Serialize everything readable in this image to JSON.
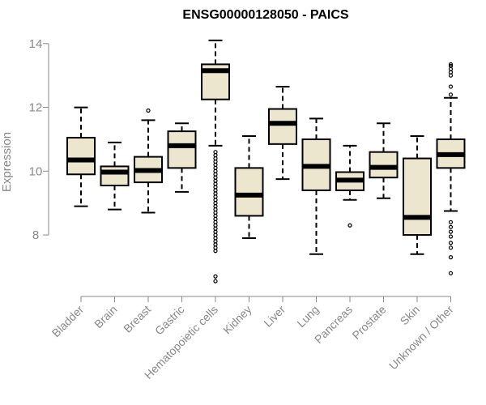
{
  "chart_data": {
    "type": "box",
    "title": "ENSG00000128050 - PAICS",
    "ylabel": "Expression",
    "ylim": [
      6.3,
      14.3
    ],
    "yticks": [
      8,
      10,
      12,
      14
    ],
    "categories": [
      "Bladder",
      "Brain",
      "Breast",
      "Gastric",
      "Hematopoietic cells",
      "Kidney",
      "Liver",
      "Lung",
      "Pancreas",
      "Prostate",
      "Skin",
      "Unknown / Other"
    ],
    "boxes": [
      {
        "whisker_low": 8.9,
        "q1": 9.9,
        "median": 10.35,
        "q3": 11.05,
        "whisker_high": 12.0,
        "outliers": []
      },
      {
        "whisker_low": 8.8,
        "q1": 9.55,
        "median": 9.97,
        "q3": 10.15,
        "whisker_high": 10.9,
        "outliers": []
      },
      {
        "whisker_low": 8.7,
        "q1": 9.65,
        "median": 10.02,
        "q3": 10.45,
        "whisker_high": 11.6,
        "outliers": [
          11.9
        ]
      },
      {
        "whisker_low": 9.35,
        "q1": 10.1,
        "median": 10.8,
        "q3": 11.25,
        "whisker_high": 11.5,
        "outliers": []
      },
      {
        "whisker_low": 10.8,
        "q1": 12.25,
        "median": 13.15,
        "q3": 13.35,
        "whisker_high": 14.1,
        "outliers": [
          10.6,
          10.5,
          10.4,
          10.3,
          10.2,
          10.1,
          10.0,
          9.9,
          9.8,
          9.7,
          9.6,
          9.5,
          9.4,
          9.3,
          9.2,
          9.1,
          9.0,
          8.9,
          8.8,
          8.7,
          8.6,
          8.5,
          8.4,
          8.3,
          8.2,
          8.1,
          8.0,
          7.9,
          7.8,
          7.7,
          7.6,
          7.5,
          6.7,
          6.55
        ]
      },
      {
        "whisker_low": 7.9,
        "q1": 8.6,
        "median": 9.25,
        "q3": 10.1,
        "whisker_high": 11.1,
        "outliers": []
      },
      {
        "whisker_low": 9.75,
        "q1": 10.85,
        "median": 11.5,
        "q3": 11.95,
        "whisker_high": 12.65,
        "outliers": []
      },
      {
        "whisker_low": 7.4,
        "q1": 9.4,
        "median": 10.15,
        "q3": 11.0,
        "whisker_high": 11.65,
        "outliers": []
      },
      {
        "whisker_low": 9.1,
        "q1": 9.4,
        "median": 9.72,
        "q3": 9.97,
        "whisker_high": 10.8,
        "outliers": [
          8.3
        ]
      },
      {
        "whisker_low": 9.15,
        "q1": 9.8,
        "median": 10.12,
        "q3": 10.6,
        "whisker_high": 11.5,
        "outliers": []
      },
      {
        "whisker_low": 7.4,
        "q1": 8.0,
        "median": 8.55,
        "q3": 10.4,
        "whisker_high": 11.1,
        "outliers": []
      },
      {
        "whisker_low": 8.75,
        "q1": 10.1,
        "median": 10.52,
        "q3": 11.0,
        "whisker_high": 12.3,
        "outliers": [
          13.35,
          13.3,
          13.2,
          13.1,
          13.0,
          12.65,
          12.4,
          8.4,
          8.25,
          8.1,
          7.95,
          7.75,
          7.6,
          7.3,
          6.8
        ]
      }
    ],
    "box_fill": "#ede6cf",
    "axis_color": "#888888",
    "grid": false,
    "legend": "none"
  }
}
